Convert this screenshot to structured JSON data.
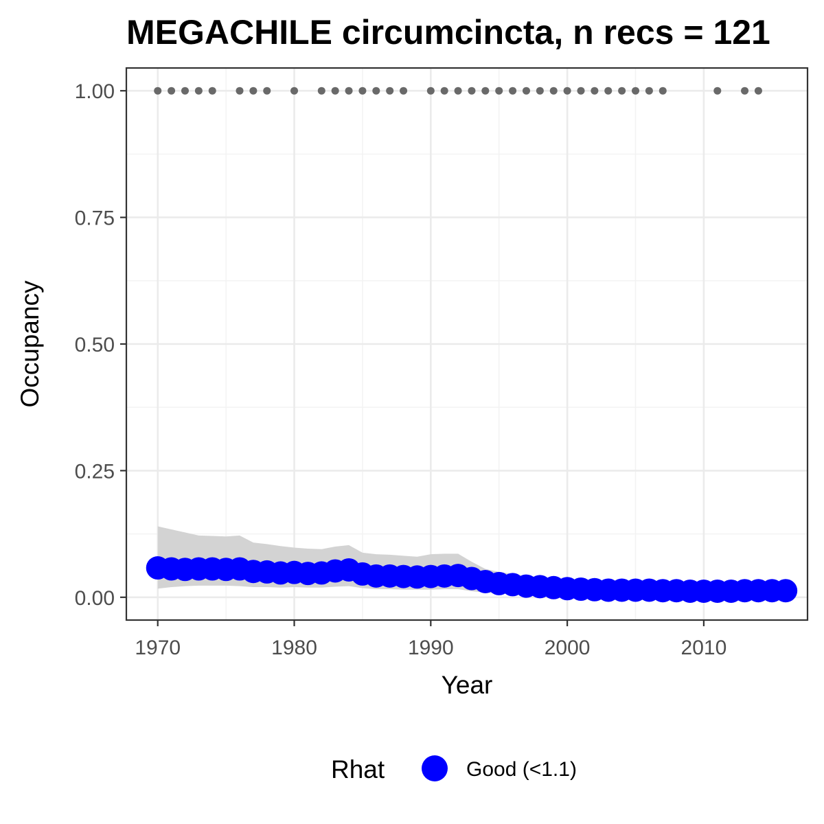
{
  "chart_data": {
    "type": "line",
    "title": "MEGACHILE circumcincta, n recs = 121",
    "xlabel": "Year",
    "ylabel": "Occupancy",
    "xlim": [
      1967.7,
      2017.6
    ],
    "ylim": [
      -0.045,
      1.045
    ],
    "x_ticks": [
      1970,
      1980,
      1990,
      2000,
      2010
    ],
    "x_tick_labels": [
      "1970",
      "1980",
      "1990",
      "2000",
      "2010"
    ],
    "y_ticks": [
      0,
      0.25,
      0.5,
      0.75,
      1.0
    ],
    "y_tick_labels": [
      "0.00",
      "0.25",
      "0.50",
      "0.75",
      "1.00"
    ],
    "grid": true,
    "legend": {
      "title": "Rhat",
      "position": "bottom",
      "entries": [
        {
          "label": "Good (<1.1)",
          "color": "#0000ff"
        }
      ]
    },
    "series": [
      {
        "name": "Good (<1.1)",
        "color": "#0000ff",
        "x": [
          1970,
          1971,
          1972,
          1973,
          1974,
          1975,
          1976,
          1977,
          1978,
          1979,
          1980,
          1981,
          1982,
          1983,
          1984,
          1985,
          1986,
          1987,
          1988,
          1989,
          1990,
          1991,
          1992,
          1993,
          1994,
          1995,
          1996,
          1997,
          1998,
          1999,
          2000,
          2001,
          2002,
          2003,
          2004,
          2005,
          2006,
          2007,
          2008,
          2009,
          2010,
          2011,
          2012,
          2013,
          2014,
          2015,
          2016
        ],
        "y": [
          0.058,
          0.056,
          0.055,
          0.056,
          0.056,
          0.055,
          0.056,
          0.051,
          0.05,
          0.048,
          0.049,
          0.047,
          0.048,
          0.052,
          0.054,
          0.046,
          0.042,
          0.042,
          0.041,
          0.04,
          0.041,
          0.042,
          0.043,
          0.037,
          0.031,
          0.027,
          0.025,
          0.022,
          0.021,
          0.019,
          0.017,
          0.016,
          0.015,
          0.014,
          0.014,
          0.014,
          0.014,
          0.013,
          0.013,
          0.012,
          0.012,
          0.012,
          0.012,
          0.013,
          0.013,
          0.013,
          0.013
        ]
      }
    ],
    "ci_band": {
      "x": [
        1970,
        1971,
        1972,
        1973,
        1974,
        1975,
        1976,
        1977,
        1978,
        1979,
        1980,
        1981,
        1982,
        1983,
        1984,
        1985,
        1986,
        1987,
        1988,
        1989,
        1990,
        1991,
        1992,
        1993,
        1994,
        1995,
        1996,
        1997,
        1998,
        1999,
        2000,
        2001,
        2002,
        2003,
        2004,
        2005,
        2006,
        2007,
        2008,
        2009,
        2010,
        2011,
        2012,
        2013,
        2014,
        2015,
        2016
      ],
      "lower": [
        0.017,
        0.02,
        0.022,
        0.023,
        0.023,
        0.023,
        0.022,
        0.02,
        0.02,
        0.019,
        0.02,
        0.019,
        0.019,
        0.021,
        0.022,
        0.018,
        0.016,
        0.016,
        0.015,
        0.015,
        0.015,
        0.016,
        0.016,
        0.012,
        0.009,
        0.007,
        0.006,
        0.005,
        0.004,
        0.004,
        0.003,
        0.003,
        0.003,
        0.002,
        0.002,
        0.002,
        0.002,
        0.002,
        0.002,
        0.002,
        0.002,
        0.002,
        0.002,
        0.002,
        0.002,
        0.002,
        0.002
      ],
      "upper": [
        0.14,
        0.134,
        0.128,
        0.122,
        0.121,
        0.12,
        0.122,
        0.108,
        0.105,
        0.101,
        0.098,
        0.096,
        0.095,
        0.1,
        0.103,
        0.088,
        0.085,
        0.084,
        0.082,
        0.08,
        0.085,
        0.086,
        0.086,
        0.07,
        0.056,
        0.05,
        0.046,
        0.042,
        0.04,
        0.037,
        0.034,
        0.032,
        0.031,
        0.03,
        0.03,
        0.03,
        0.029,
        0.029,
        0.028,
        0.028,
        0.028,
        0.027,
        0.027,
        0.028,
        0.028,
        0.028,
        0.028
      ],
      "color": "#d3d3d3"
    },
    "record_points": {
      "color": "#696969",
      "y": 1.0,
      "x": [
        1970,
        1971,
        1972,
        1973,
        1974,
        1976,
        1977,
        1978,
        1980,
        1982,
        1983,
        1984,
        1985,
        1986,
        1987,
        1988,
        1990,
        1991,
        1992,
        1993,
        1994,
        1995,
        1996,
        1997,
        1998,
        1999,
        2000,
        2001,
        2002,
        2003,
        2004,
        2005,
        2006,
        2007,
        2011,
        2013,
        2014
      ]
    }
  }
}
